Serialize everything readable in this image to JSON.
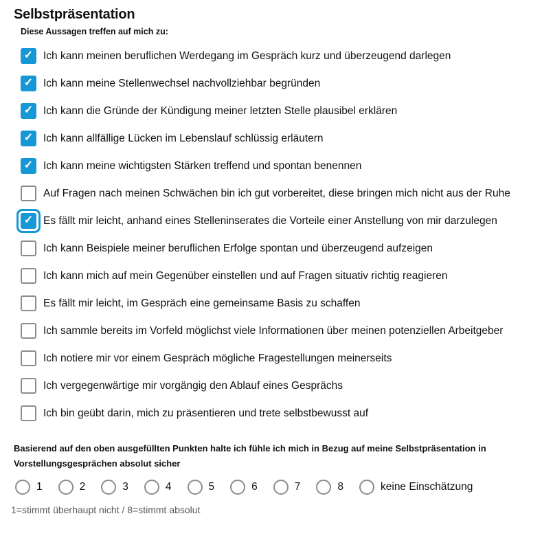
{
  "title": "Selbstpräsentation",
  "subtitle": "Diese Aussagen treffen auf mich zu:",
  "colors": {
    "accent": "#1697d6",
    "checkbox_border": "#8c8c8c",
    "footnote_text": "#595959"
  },
  "checkmark_icon": "✓",
  "checkboxes": [
    {
      "label": "Ich kann meinen beruflichen Werdegang im Gespräch kurz und überzeugend darlegen",
      "checked": true,
      "focused": false
    },
    {
      "label": "Ich kann meine Stellenwechsel nachvollziehbar begründen",
      "checked": true,
      "focused": false
    },
    {
      "label": "Ich kann die Gründe der Kündigung meiner letzten Stelle plausibel erklären",
      "checked": true,
      "focused": false
    },
    {
      "label": "Ich kann allfällige Lücken im Lebenslauf schlüssig erläutern",
      "checked": true,
      "focused": false
    },
    {
      "label": "Ich kann meine wichtigsten Stärken treffend und spontan benennen",
      "checked": true,
      "focused": false
    },
    {
      "label": "Auf Fragen nach meinen Schwächen bin ich gut vorbereitet, diese bringen mich nicht aus der Ruhe",
      "checked": false,
      "focused": false
    },
    {
      "label": "Es fällt mir leicht, anhand eines Stelleninserates die Vorteile einer Anstellung von mir darzulegen",
      "checked": true,
      "focused": true
    },
    {
      "label": "Ich kann Beispiele meiner beruflichen Erfolge spontan und überzeugend aufzeigen",
      "checked": false,
      "focused": false
    },
    {
      "label": "Ich kann mich auf mein Gegenüber einstellen und auf Fragen situativ richtig reagieren",
      "checked": false,
      "focused": false
    },
    {
      "label": "Es fällt mir leicht, im Gespräch eine gemeinsame Basis zu schaffen",
      "checked": false,
      "focused": false
    },
    {
      "label": "Ich sammle bereits im Vorfeld möglichst viele Informationen über meinen potenziellen Arbeitgeber",
      "checked": false,
      "focused": false
    },
    {
      "label": "Ich notiere mir vor einem Gespräch mögliche Fragestellungen meinerseits",
      "checked": false,
      "focused": false
    },
    {
      "label": "Ich vergegenwärtige mir vorgängig den Ablauf eines Gesprächs",
      "checked": false,
      "focused": false
    },
    {
      "label": "Ich bin geübt darin, mich zu präsentieren und trete selbstbewusst auf",
      "checked": false,
      "focused": false
    }
  ],
  "rating": {
    "question": "Basierend auf den oben ausgefüllten Punkten halte ich fühle ich mich in Bezug auf meine Selbstpräsentation in Vorstellungsgesprächen absolut sicher",
    "options": [
      "1",
      "2",
      "3",
      "4",
      "5",
      "6",
      "7",
      "8",
      "keine Einschätzung"
    ],
    "selected": null,
    "note": "1=stimmt überhaupt nicht / 8=stimmt absolut"
  }
}
